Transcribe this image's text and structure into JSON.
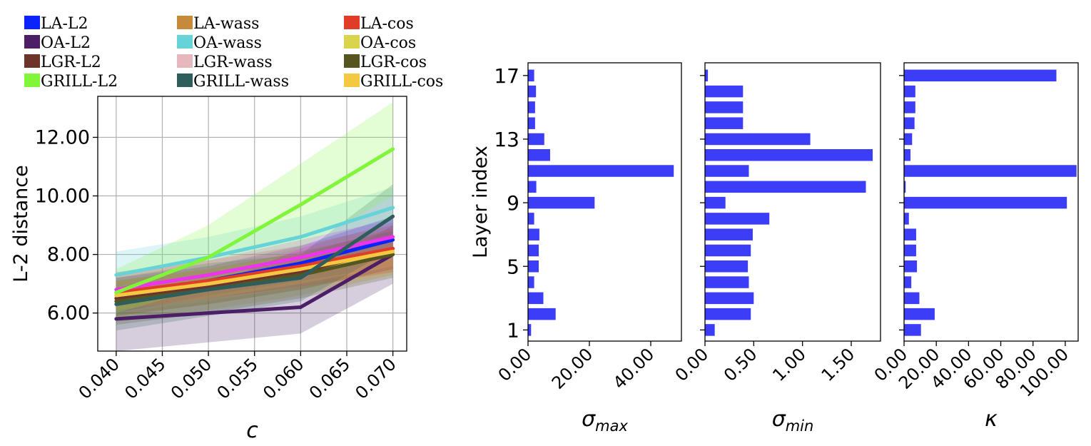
{
  "chart_data": [
    {
      "type": "line",
      "xlabel": "c",
      "ylabel": "L-2 distance",
      "x": [
        0.04,
        0.05,
        0.06,
        0.07
      ],
      "x_ticks": [
        "0.040",
        "0.045",
        "0.050",
        "0.055",
        "0.060",
        "0.065",
        "0.070"
      ],
      "y_ticks": [
        "6.00",
        "8.00",
        "10.00",
        "12.00"
      ],
      "xlim": [
        0.038,
        0.0715
      ],
      "ylim": [
        4.7,
        13.4
      ],
      "grid": true,
      "legend_placement": "top",
      "series": [
        {
          "name": "LA-L2",
          "color": "#0b24fb",
          "values": [
            6.6,
            7.1,
            7.7,
            8.5
          ],
          "band": [
            [
              6.0,
              7.2
            ],
            [
              6.6,
              7.6
            ],
            [
              7.1,
              8.3
            ],
            [
              7.6,
              9.3
            ]
          ]
        },
        {
          "name": "LA-wass",
          "color": "#c58b3a",
          "values": [
            6.4,
            6.9,
            7.4,
            8.2
          ],
          "band": [
            [
              5.7,
              7.1
            ],
            [
              6.1,
              7.6
            ],
            [
              6.6,
              8.2
            ],
            [
              7.3,
              9.1
            ]
          ]
        },
        {
          "name": "LA-cos",
          "color": "#e03c28",
          "values": [
            6.7,
            7.1,
            7.6,
            8.2
          ],
          "band": [
            [
              6.1,
              7.4
            ],
            [
              6.5,
              7.8
            ],
            [
              6.9,
              8.3
            ],
            [
              7.4,
              9.0
            ]
          ]
        },
        {
          "name": "OA-L2",
          "color": "#4b1e66",
          "values": [
            5.8,
            6.0,
            6.2,
            8.0
          ],
          "band": [
            [
              4.7,
              6.8
            ],
            [
              5.0,
              7.0
            ],
            [
              5.3,
              7.1
            ],
            [
              7.0,
              9.0
            ]
          ]
        },
        {
          "name": "OA-wass",
          "color": "#66d3d8",
          "values": [
            7.3,
            7.9,
            8.6,
            9.6
          ],
          "band": [
            [
              6.8,
              8.1
            ],
            [
              7.3,
              8.6
            ],
            [
              7.9,
              9.3
            ],
            [
              8.7,
              10.3
            ]
          ]
        },
        {
          "name": "OA-cos",
          "color": "#d9d44c",
          "values": [
            6.5,
            6.9,
            7.4,
            8.0
          ],
          "band": [
            [
              5.9,
              7.1
            ],
            [
              6.3,
              7.5
            ],
            [
              6.8,
              8.0
            ],
            [
              7.3,
              8.7
            ]
          ]
        },
        {
          "name": "LGR-L2",
          "color": "#6e3429",
          "values": [
            6.5,
            6.9,
            7.4,
            8.2
          ],
          "band": [
            [
              5.9,
              7.1
            ],
            [
              6.3,
              7.5
            ],
            [
              6.8,
              8.0
            ],
            [
              7.5,
              8.9
            ]
          ]
        },
        {
          "name": "LGR-wass",
          "color": "#e6b7bc",
          "values": [
            6.6,
            7.0,
            7.5,
            8.2
          ],
          "band": [
            [
              6.0,
              7.2
            ],
            [
              6.4,
              7.6
            ],
            [
              6.9,
              8.1
            ],
            [
              7.6,
              8.9
            ]
          ]
        },
        {
          "name": "LGR-cos",
          "color": "#55561f",
          "values": [
            6.4,
            6.8,
            7.3,
            8.0
          ],
          "band": [
            [
              5.6,
              7.1
            ],
            [
              6.0,
              7.5
            ],
            [
              6.5,
              8.1
            ],
            [
              7.2,
              8.8
            ]
          ]
        },
        {
          "name": "GRILL-L2",
          "color": "#80f53a",
          "values": [
            6.7,
            7.9,
            9.7,
            11.6
          ],
          "band": [
            [
              6.0,
              7.5
            ],
            [
              6.9,
              9.0
            ],
            [
              8.2,
              11.1
            ],
            [
              10.0,
              13.2
            ]
          ]
        },
        {
          "name": "GRILL-wass",
          "color": "#2e5e5c",
          "values": [
            6.3,
            6.8,
            7.2,
            9.3
          ],
          "band": [
            [
              5.4,
              7.2
            ],
            [
              5.9,
              7.7
            ],
            [
              6.4,
              8.0
            ],
            [
              8.2,
              10.4
            ]
          ]
        },
        {
          "name": "GRILL-cos",
          "color": "#f5c842",
          "values": [
            6.6,
            7.0,
            7.5,
            8.1
          ],
          "band": [
            [
              6.1,
              7.1
            ],
            [
              6.5,
              7.5
            ],
            [
              7.0,
              8.0
            ],
            [
              7.6,
              8.6
            ]
          ]
        },
        {
          "color": "#ee33ee",
          "values": [
            6.8,
            7.3,
            7.9,
            8.6
          ],
          "band": [
            [
              6.3,
              7.3
            ],
            [
              6.8,
              7.8
            ],
            [
              7.3,
              8.5
            ],
            [
              7.9,
              9.2
            ]
          ]
        }
      ],
      "draw_order": [
        3,
        1,
        4,
        0,
        5,
        6,
        7,
        8,
        2,
        12,
        11,
        10,
        9
      ]
    },
    {
      "type": "bar",
      "orientation": "horizontal",
      "ylabel": "Layer index",
      "xlabel": "σmax",
      "color": "#3b3ef6",
      "categories": [
        1,
        2,
        3,
        4,
        5,
        6,
        7,
        8,
        9,
        10,
        11,
        12,
        13,
        14,
        15,
        16,
        17
      ],
      "y_ticks": [
        "1",
        "5",
        "9",
        "13",
        "17"
      ],
      "values": [
        1.0,
        9.0,
        5.0,
        2.0,
        3.5,
        3.5,
        3.7,
        2.0,
        21.7,
        2.7,
        47.5,
        7.2,
        5.3,
        2.3,
        2.3,
        2.6,
        2.0
      ],
      "xlim": [
        0,
        50
      ],
      "x_ticks": [
        0,
        20,
        40
      ],
      "x_tick_labels": [
        "0.00",
        "20.00",
        "40.00"
      ]
    },
    {
      "type": "bar",
      "orientation": "horizontal",
      "xlabel": "σmin",
      "color": "#3b3ef6",
      "categories": [
        1,
        2,
        3,
        4,
        5,
        6,
        7,
        8,
        9,
        10,
        11,
        12,
        13,
        14,
        15,
        16,
        17
      ],
      "values": [
        0.1,
        0.47,
        0.5,
        0.45,
        0.44,
        0.47,
        0.49,
        0.66,
        0.21,
        1.65,
        0.45,
        1.72,
        1.08,
        0.39,
        0.39,
        0.39,
        0.03
      ],
      "xlim": [
        0,
        1.8
      ],
      "x_ticks": [
        0,
        0.5,
        1.0,
        1.5
      ],
      "x_tick_labels": [
        "0.00",
        "0.50",
        "1.00",
        "1.50"
      ]
    },
    {
      "type": "bar",
      "orientation": "horizontal",
      "xlabel": "κ",
      "color": "#3b3ef6",
      "categories": [
        1,
        2,
        3,
        4,
        5,
        6,
        7,
        8,
        9,
        10,
        11,
        12,
        13,
        14,
        15,
        16,
        17
      ],
      "values": [
        10.5,
        19.0,
        9.5,
        4.5,
        8.0,
        7.5,
        7.5,
        3.0,
        101.0,
        1.0,
        107.0,
        4.0,
        5.0,
        6.5,
        7.0,
        7.0,
        94.5
      ],
      "xlim": [
        0,
        108
      ],
      "x_ticks": [
        0,
        20,
        40,
        60,
        80,
        100
      ],
      "x_tick_labels": [
        "0.00",
        "20.00",
        "40.00",
        "60.00",
        "80.00",
        "100.00"
      ]
    }
  ]
}
